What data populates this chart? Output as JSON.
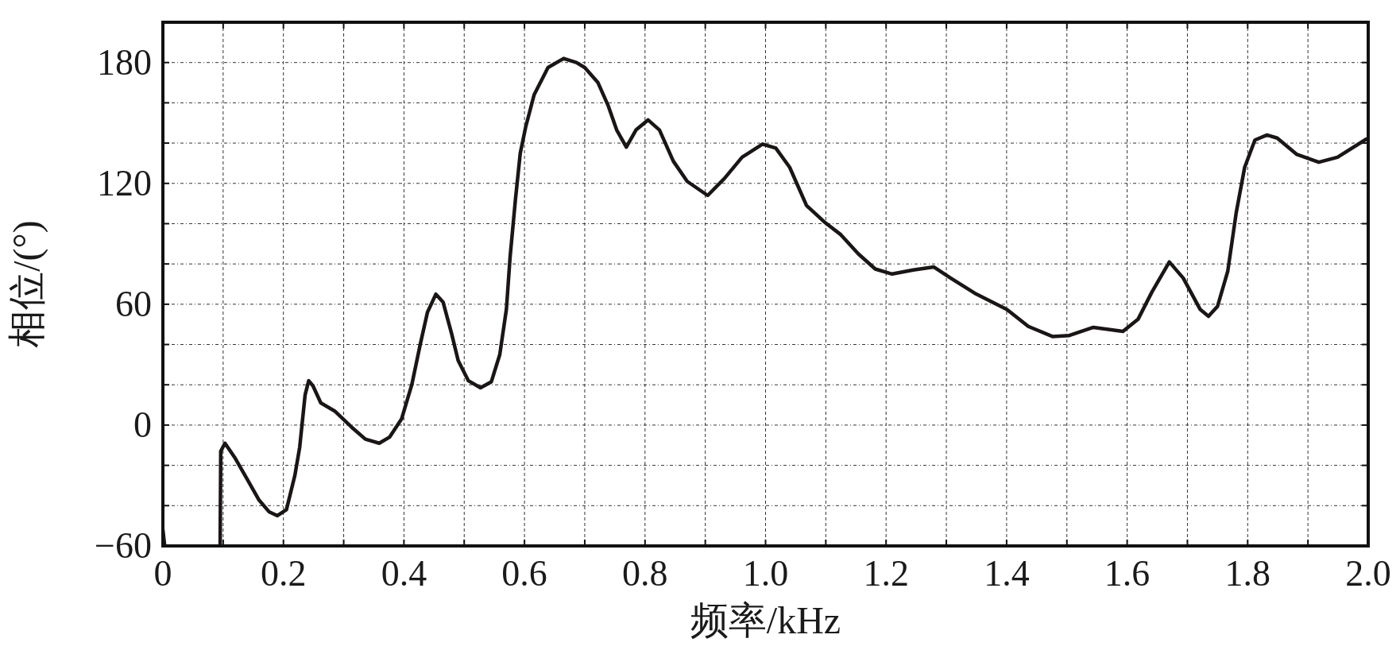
{
  "chart_data": {
    "type": "line",
    "xlabel": "频率/kHz",
    "ylabel": "相位/(°)",
    "x": [
      0.095,
      0.096,
      0.103,
      0.119,
      0.142,
      0.159,
      0.176,
      0.19,
      0.205,
      0.219,
      0.227,
      0.236,
      0.242,
      0.249,
      0.262,
      0.285,
      0.313,
      0.336,
      0.359,
      0.376,
      0.396,
      0.413,
      0.427,
      0.439,
      0.453,
      0.465,
      0.479,
      0.49,
      0.507,
      0.527,
      0.545,
      0.559,
      0.57,
      0.576,
      0.585,
      0.593,
      0.602,
      0.616,
      0.639,
      0.665,
      0.686,
      0.7,
      0.722,
      0.739,
      0.753,
      0.769,
      0.785,
      0.805,
      0.824,
      0.847,
      0.87,
      0.904,
      0.932,
      0.961,
      0.995,
      1.017,
      1.04,
      1.068,
      1.097,
      1.125,
      1.154,
      1.182,
      1.21,
      1.245,
      1.279,
      1.307,
      1.347,
      1.4,
      1.436,
      1.476,
      1.504,
      1.544,
      1.593,
      1.618,
      1.641,
      1.67,
      1.693,
      1.721,
      1.735,
      1.75,
      1.767,
      1.781,
      1.795,
      1.812,
      1.832,
      1.849,
      1.881,
      1.918,
      1.949,
      1.997
    ],
    "series": [
      {
        "color": "#1a1616",
        "x": [
          0,
          0.003
        ],
        "values": [
          -52,
          -60
        ]
      },
      {
        "color": "#1a1616",
        "values": [
          -60,
          -13,
          -9,
          -16,
          -28,
          -37,
          -43,
          -45,
          -42,
          -25,
          -11,
          15,
          22,
          19.5,
          11,
          7,
          -1,
          -7,
          -9,
          -6,
          3,
          20,
          40,
          56,
          65,
          61,
          45.5,
          32,
          22,
          18.5,
          21.5,
          35,
          57.5,
          83,
          112,
          135,
          148,
          164,
          177.5,
          182,
          180,
          177.5,
          170,
          158.5,
          146.5,
          138,
          146.5,
          151.5,
          146.5,
          131,
          121,
          114,
          122.5,
          133,
          139.5,
          137.5,
          128,
          109,
          101,
          94.5,
          85,
          77.5,
          75,
          77,
          78.5,
          73,
          65.5,
          57.5,
          49,
          44,
          44.5,
          48.5,
          46.5,
          52.5,
          66,
          81,
          73,
          57.5,
          54,
          59,
          76.5,
          105.5,
          128,
          141.5,
          144,
          142.5,
          134.5,
          130.5,
          133,
          142
        ]
      }
    ],
    "xlim": [
      0,
      2.0
    ],
    "ylim": [
      -60,
      200
    ],
    "xticks": [
      0,
      {
        "value": 0.1,
        "label": null
      },
      {
        "value": 0.2,
        "label": "0.2"
      },
      {
        "value": 0.3,
        "label": null
      },
      {
        "value": 0.4,
        "label": "0.4"
      },
      {
        "value": 0.5,
        "label": null
      },
      {
        "value": 0.6,
        "label": "0.6"
      },
      {
        "value": 0.7,
        "label": null
      },
      {
        "value": 0.8,
        "label": "0.8"
      },
      {
        "value": 0.9,
        "label": null
      },
      {
        "value": 1.0,
        "label": "1.0"
      },
      {
        "value": 1.1,
        "label": null
      },
      {
        "value": 1.2,
        "label": "1.2"
      },
      {
        "value": 1.3,
        "label": null
      },
      {
        "value": 1.4,
        "label": "1.4"
      },
      {
        "value": 1.5,
        "label": null
      },
      {
        "value": 1.6,
        "label": "1.6"
      },
      {
        "value": 1.7,
        "label": null
      },
      {
        "value": 1.8,
        "label": "1.8"
      },
      {
        "value": 1.9,
        "label": null
      },
      {
        "value": 2.0,
        "label": "2.0"
      }
    ],
    "yticks": [
      {
        "value": -60,
        "label": "−60"
      },
      {
        "value": -40,
        "label": null
      },
      {
        "value": -20,
        "label": null
      },
      0,
      {
        "value": 20,
        "label": null
      },
      {
        "value": 40,
        "label": null
      },
      60,
      {
        "value": 80,
        "label": null
      },
      {
        "value": 100,
        "label": null
      },
      120,
      {
        "value": 140,
        "label": null
      },
      {
        "value": 160,
        "label": null
      },
      180
    ],
    "grid": true
  }
}
